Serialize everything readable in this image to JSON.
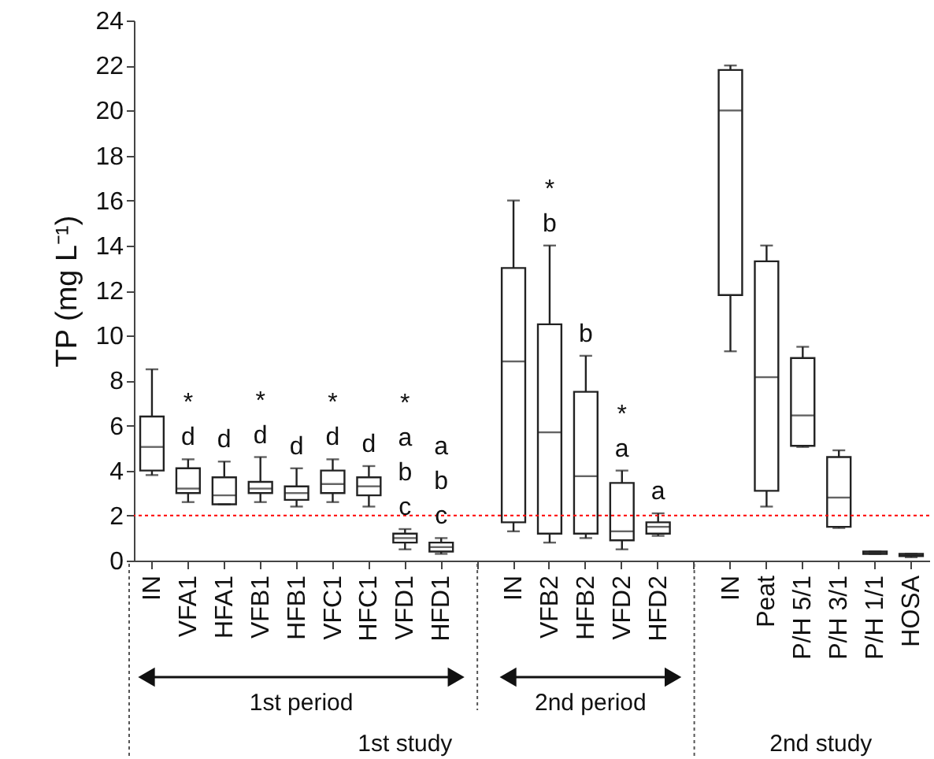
{
  "chart_data": {
    "type": "box",
    "ylabel": "TP (mg L⁻¹)",
    "categories": [
      "IN",
      "VFA1",
      "HFA1",
      "VFB1",
      "HFB1",
      "VFC1",
      "HFC1",
      "VFD1",
      "HFD1",
      null,
      "IN",
      "VFB2",
      "HFB2",
      "VFD2",
      "HFD2",
      null,
      "IN",
      "Peat",
      "P/H 5/1",
      "P/H 3/1",
      "P/H 1/1",
      "HOSA"
    ],
    "boxes": [
      {
        "low": 3.8,
        "q1": 4.0,
        "median": 5.05,
        "q3": 6.4,
        "high": 8.5
      },
      {
        "low": 2.6,
        "q1": 3.0,
        "median": 3.2,
        "q3": 4.1,
        "high": 4.5
      },
      {
        "low": 2.5,
        "q1": 2.5,
        "median": 2.9,
        "q3": 3.7,
        "high": 4.4
      },
      {
        "low": 2.6,
        "q1": 3.0,
        "median": 3.2,
        "q3": 3.5,
        "high": 4.6
      },
      {
        "low": 2.4,
        "q1": 2.7,
        "median": 3.0,
        "q3": 3.3,
        "high": 4.1
      },
      {
        "low": 2.6,
        "q1": 3.0,
        "median": 3.4,
        "q3": 4.0,
        "high": 4.5
      },
      {
        "low": 2.4,
        "q1": 2.9,
        "median": 3.3,
        "q3": 3.7,
        "high": 4.2
      },
      {
        "low": 0.5,
        "q1": 0.8,
        "median": 1.0,
        "q3": 1.2,
        "high": 1.4
      },
      {
        "low": 0.3,
        "q1": 0.4,
        "median": 0.6,
        "q3": 0.8,
        "high": 1.0
      },
      null,
      {
        "low": 1.3,
        "q1": 1.7,
        "median": 8.85,
        "q3": 13.0,
        "high": 16.0
      },
      {
        "low": 0.8,
        "q1": 1.2,
        "median": 5.7,
        "q3": 10.5,
        "high": 14.0
      },
      {
        "low": 1.0,
        "q1": 1.2,
        "median": 3.75,
        "q3": 7.5,
        "high": 9.1
      },
      {
        "low": 0.5,
        "q1": 0.9,
        "median": 1.3,
        "q3": 3.45,
        "high": 4.0
      },
      {
        "low": 1.1,
        "q1": 1.2,
        "median": 1.5,
        "q3": 1.7,
        "high": 2.1
      },
      null,
      {
        "low": 9.3,
        "q1": 11.8,
        "median": 20.0,
        "q3": 21.8,
        "high": 22.0
      },
      {
        "low": 2.4,
        "q1": 3.1,
        "median": 8.15,
        "q3": 13.3,
        "high": 14.0
      },
      {
        "low": 5.05,
        "q1": 5.1,
        "median": 6.45,
        "q3": 9.0,
        "high": 9.5
      },
      {
        "low": 1.45,
        "q1": 1.5,
        "median": 2.8,
        "q3": 4.6,
        "high": 4.9
      },
      {
        "low": 0.3,
        "q1": 0.3,
        "median": 0.35,
        "q3": 0.4,
        "high": 0.4
      },
      {
        "low": 0.15,
        "q1": 0.2,
        "median": 0.25,
        "q3": 0.3,
        "high": 0.3
      }
    ],
    "ylim": [
      0,
      24
    ],
    "yticks": [
      0,
      2,
      4,
      6,
      8,
      10,
      12,
      14,
      16,
      18,
      20,
      22,
      24
    ],
    "ref_lines": [
      {
        "axis": "y",
        "value": 2,
        "color": "#ff0000",
        "line_style": "dotted"
      }
    ],
    "value_labels": [
      null,
      "*\nd",
      "d",
      "*\nd",
      "d",
      "*\nd",
      "d",
      "*\na\nb\nc",
      "a\nb\nc",
      null,
      null,
      "*\nb",
      "b",
      "*\na",
      "a",
      null,
      null,
      null,
      null,
      null,
      null,
      null
    ],
    "annotations": [
      "1st period",
      "2nd period",
      "1st study",
      "2nd study"
    ],
    "grid": false
  }
}
